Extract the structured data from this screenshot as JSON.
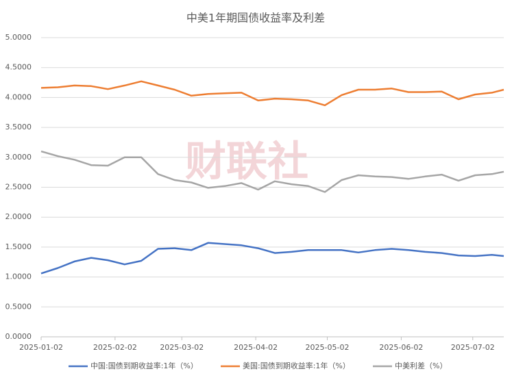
{
  "chart_data": {
    "type": "line",
    "title": "中美1年期国债收益率及利差",
    "watermark": "财联社",
    "x": [
      "2025-01-02",
      "2025-01-09",
      "2025-01-16",
      "2025-01-23",
      "2025-01-30",
      "2025-02-06",
      "2025-02-13",
      "2025-02-20",
      "2025-02-27",
      "2025-03-06",
      "2025-03-13",
      "2025-03-20",
      "2025-03-27",
      "2025-04-03",
      "2025-04-10",
      "2025-04-17",
      "2025-04-24",
      "2025-05-01",
      "2025-05-08",
      "2025-05-15",
      "2025-05-22",
      "2025-05-29",
      "2025-06-05",
      "2025-06-12",
      "2025-06-19",
      "2025-06-26",
      "2025-07-03",
      "2025-07-10",
      "2025-07-15"
    ],
    "series": [
      {
        "name": "中国:国债到期收益率:1年（%）",
        "color": "#4472c4",
        "values": [
          1.06,
          1.15,
          1.26,
          1.32,
          1.28,
          1.21,
          1.27,
          1.47,
          1.48,
          1.45,
          1.57,
          1.55,
          1.53,
          1.48,
          1.4,
          1.42,
          1.45,
          1.45,
          1.45,
          1.41,
          1.45,
          1.47,
          1.45,
          1.42,
          1.4,
          1.36,
          1.35,
          1.37,
          1.35
        ]
      },
      {
        "name": "美国:国债到期收益率:1年（%）",
        "color": "#ed7d31",
        "values": [
          4.16,
          4.17,
          4.2,
          4.19,
          4.14,
          4.2,
          4.27,
          4.2,
          4.13,
          4.03,
          4.06,
          4.07,
          4.08,
          3.95,
          3.98,
          3.97,
          3.95,
          3.87,
          4.04,
          4.13,
          4.13,
          4.15,
          4.09,
          4.09,
          4.1,
          3.97,
          4.05,
          4.08,
          4.13
        ]
      },
      {
        "name": "中美利差（%）",
        "color": "#a5a5a5",
        "values": [
          3.1,
          3.02,
          2.96,
          2.87,
          2.86,
          3.0,
          3.0,
          2.72,
          2.62,
          2.58,
          2.49,
          2.52,
          2.57,
          2.46,
          2.6,
          2.55,
          2.52,
          2.42,
          2.62,
          2.7,
          2.68,
          2.67,
          2.64,
          2.68,
          2.71,
          2.61,
          2.7,
          2.72,
          2.76
        ]
      }
    ],
    "xlim": [
      "2025-01-02",
      "2025-07-15"
    ],
    "xticks": [
      "2025-01-02",
      "2025-02-02",
      "2025-03-02",
      "2025-04-02",
      "2025-05-02",
      "2025-06-02",
      "2025-07-02"
    ],
    "ylim": [
      0,
      5
    ],
    "yticks": [
      {
        "value": 0,
        "label": "0.0000"
      },
      {
        "value": 0.5,
        "label": "0.5000"
      },
      {
        "value": 1,
        "label": "1.0000"
      },
      {
        "value": 1.5,
        "label": "1.5000"
      },
      {
        "value": 2,
        "label": "2.0000"
      },
      {
        "value": 2.5,
        "label": "2.5000"
      },
      {
        "value": 3,
        "label": "3.0000"
      },
      {
        "value": 3.5,
        "label": "3.5000"
      },
      {
        "value": 4,
        "label": "4.0000"
      },
      {
        "value": 4.5,
        "label": "4.5000"
      },
      {
        "value": 5,
        "label": "5.0000"
      }
    ],
    "grid": true,
    "legend": "bottom"
  }
}
